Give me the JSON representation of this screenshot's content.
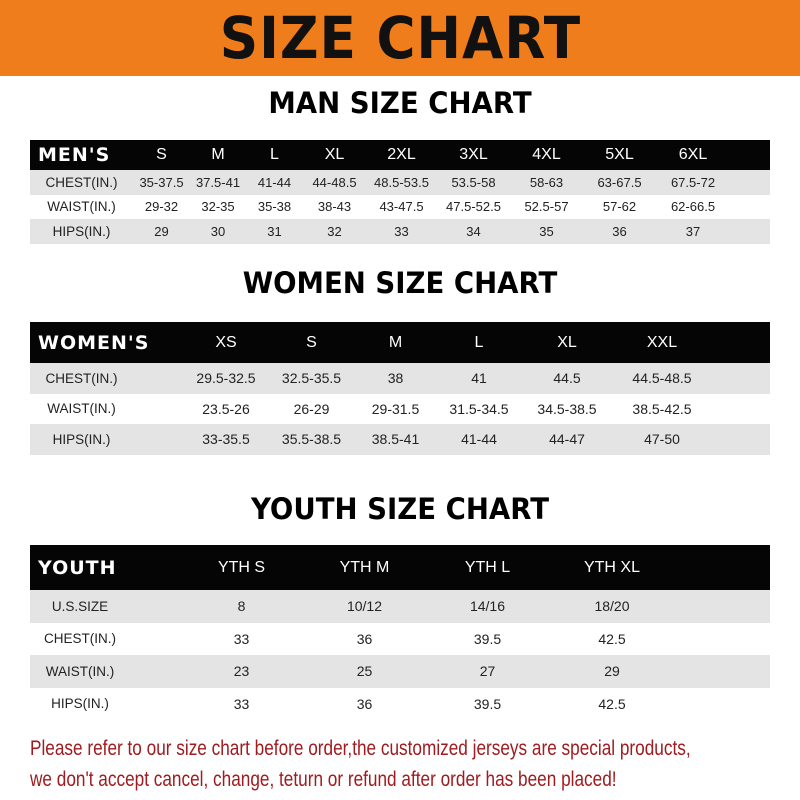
{
  "banner": {
    "title": "SIZE CHART",
    "background": "#f07d1c"
  },
  "men": {
    "title": "MAN SIZE CHART",
    "header": [
      "MEN'S",
      "S",
      "M",
      "L",
      "XL",
      "2XL",
      "3XL",
      "4XL",
      "5XL",
      "6XL"
    ],
    "rows": [
      [
        "CHEST(IN.)",
        "35-37.5",
        "37.5-41",
        "41-44",
        "44-48.5",
        "48.5-53.5",
        "53.5-58",
        "58-63",
        "63-67.5",
        "67.5-72"
      ],
      [
        "WAIST(IN.)",
        "29-32",
        "32-35",
        "35-38",
        "38-43",
        "43-47.5",
        "47.5-52.5",
        "52.5-57",
        "57-62",
        "62-66.5"
      ],
      [
        "HIPS(IN.)",
        "29",
        "30",
        "31",
        "32",
        "33",
        "34",
        "35",
        "36",
        "37"
      ]
    ]
  },
  "women": {
    "title": "WOMEN SIZE CHART",
    "header": [
      "WOMEN'S",
      "XS",
      "S",
      "M",
      "L",
      "XL",
      "XXL"
    ],
    "rows": [
      [
        "CHEST(IN.)",
        "29.5-32.5",
        "32.5-35.5",
        "38",
        "41",
        "44.5",
        "44.5-48.5"
      ],
      [
        "WAIST(IN.)",
        "23.5-26",
        "26-29",
        "29-31.5",
        "31.5-34.5",
        "34.5-38.5",
        "38.5-42.5"
      ],
      [
        "HIPS(IN.)",
        "33-35.5",
        "35.5-38.5",
        "38.5-41",
        "41-44",
        "44-47",
        "47-50"
      ]
    ]
  },
  "youth": {
    "title": "YOUTH SIZE CHART",
    "header": [
      "YOUTH",
      "YTH S",
      "YTH M",
      "YTH L",
      "YTH XL"
    ],
    "rows": [
      [
        "U.S.SIZE",
        "8",
        "10/12",
        "14/16",
        "18/20"
      ],
      [
        "CHEST(IN.)",
        "33",
        "36",
        "39.5",
        "42.5"
      ],
      [
        "WAIST(IN.)",
        "23",
        "25",
        "27",
        "29"
      ],
      [
        "HIPS(IN.)",
        "33",
        "36",
        "39.5",
        "42.5"
      ]
    ]
  },
  "notice": {
    "line1": "Please refer to our size chart before order,the customized jerseys are special products,",
    "line2": "we don't accept cancel, change, teturn or refund after order has been placed!",
    "color": "#a01b1f"
  }
}
